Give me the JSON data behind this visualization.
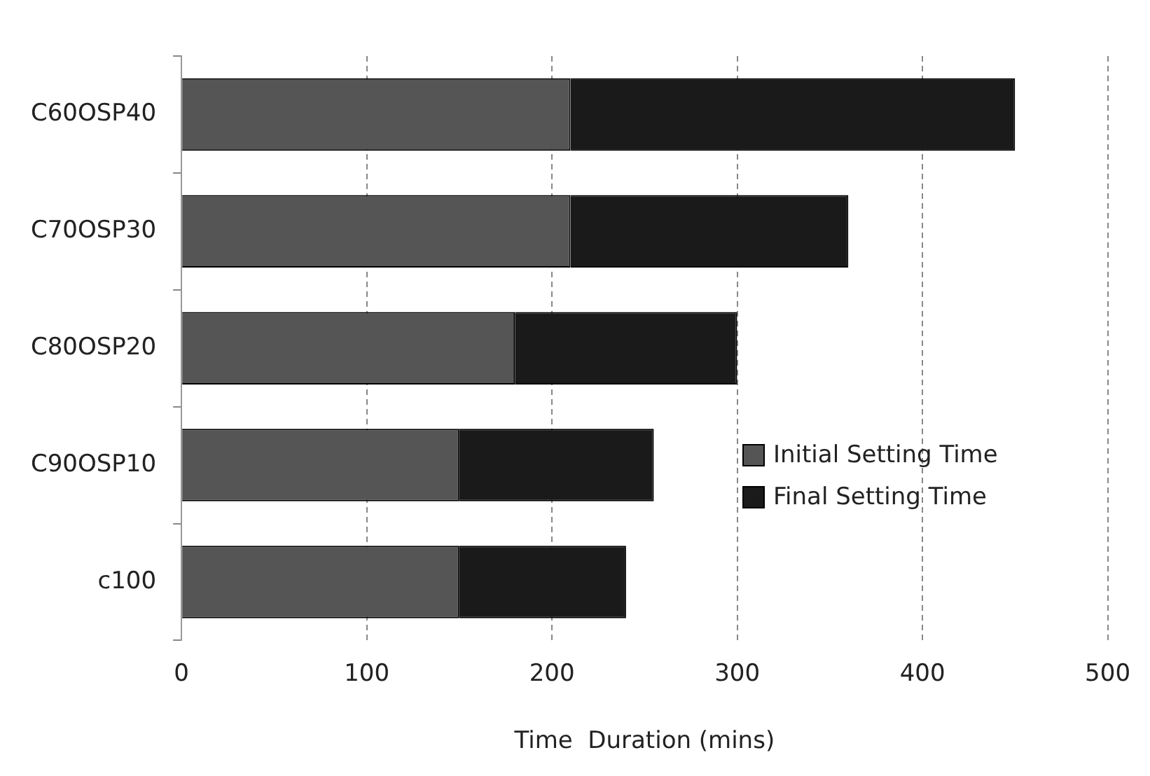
{
  "chart_data": {
    "type": "bar",
    "orientation": "horizontal",
    "stacked": true,
    "xlabel": "Time  Duration (mins)",
    "categories": [
      "C60OSP40",
      "C70OSP30",
      "C80OSP20",
      "C90OSP10",
      "c100"
    ],
    "series": [
      {
        "name": "Initial Setting Time",
        "color": "#555555",
        "values": [
          210,
          210,
          180,
          150,
          150
        ]
      },
      {
        "name": "Final Setting Time",
        "color": "#1a1a1a",
        "values": [
          240,
          150,
          120,
          105,
          90
        ]
      }
    ],
    "xlim": [
      0,
      500
    ],
    "xticks": [
      0,
      100,
      200,
      300,
      400,
      500
    ],
    "grid": "x",
    "legend": "right"
  }
}
